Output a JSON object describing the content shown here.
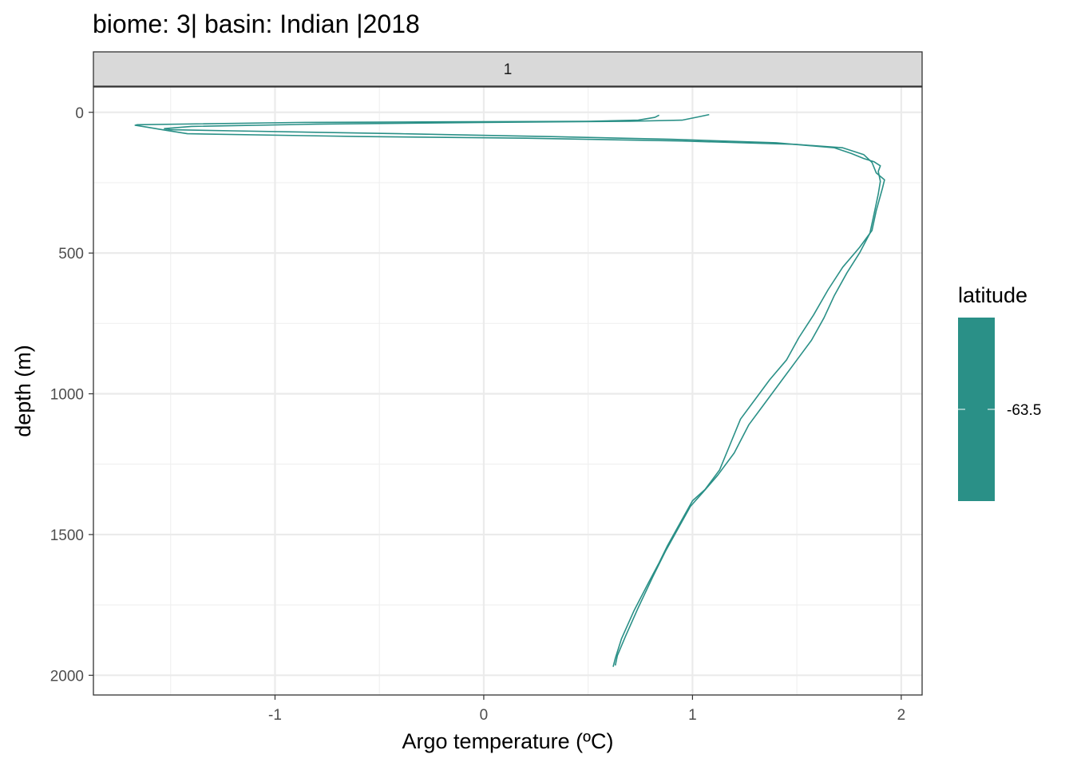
{
  "chart_data": {
    "type": "line",
    "title": "biome: 3| basin: Indian |2018",
    "facet_label": "1",
    "xlabel": "Argo temperature (ºC)",
    "ylabel": "depth (m)",
    "xlim": [
      -1.87,
      2.1
    ],
    "ylim": [
      2070,
      -90
    ],
    "y_reversed": true,
    "grid": true,
    "x_ticks": [
      -1,
      0,
      1,
      2
    ],
    "x_tick_labels": [
      "-1",
      "0",
      "1",
      "2"
    ],
    "y_ticks": [
      0,
      500,
      1000,
      1500,
      2000
    ],
    "y_tick_labels": [
      "0",
      "500",
      "1000",
      "1500",
      "2000"
    ],
    "legend": {
      "title": "latitude",
      "label": "-63.5",
      "placement": "right",
      "color": "#2a9087"
    },
    "series": [
      {
        "color": "#2a9087",
        "points": [
          [
            0.84,
            10
          ],
          [
            0.82,
            18
          ],
          [
            0.74,
            28
          ],
          [
            0.5,
            32
          ],
          [
            -0.2,
            34
          ],
          [
            -0.9,
            36
          ],
          [
            -1.66,
            44
          ],
          [
            -1.67,
            46
          ],
          [
            -1.62,
            52
          ],
          [
            -1.54,
            62
          ],
          [
            -1.42,
            76
          ],
          [
            -0.6,
            86
          ],
          [
            0.2,
            92
          ],
          [
            0.95,
            102
          ],
          [
            1.5,
            114
          ],
          [
            1.72,
            126
          ],
          [
            1.82,
            150
          ],
          [
            1.86,
            178
          ],
          [
            1.88,
            215
          ],
          [
            1.92,
            240
          ],
          [
            1.91,
            270
          ],
          [
            1.88,
            350
          ],
          [
            1.86,
            420
          ],
          [
            1.8,
            480
          ],
          [
            1.72,
            550
          ],
          [
            1.65,
            630
          ],
          [
            1.58,
            720
          ],
          [
            1.51,
            800
          ],
          [
            1.45,
            880
          ],
          [
            1.37,
            950
          ],
          [
            1.3,
            1020
          ],
          [
            1.23,
            1090
          ],
          [
            1.18,
            1180
          ],
          [
            1.13,
            1270
          ],
          [
            1.06,
            1340
          ],
          [
            1.0,
            1380
          ],
          [
            0.94,
            1460
          ],
          [
            0.88,
            1540
          ],
          [
            0.84,
            1600
          ],
          [
            0.79,
            1670
          ],
          [
            0.72,
            1770
          ],
          [
            0.66,
            1870
          ],
          [
            0.63,
            1940
          ],
          [
            0.62,
            1970
          ]
        ]
      },
      {
        "color": "#2a9087",
        "points": [
          [
            1.08,
            8
          ],
          [
            1.03,
            16
          ],
          [
            0.95,
            28
          ],
          [
            0.7,
            32
          ],
          [
            0.0,
            36
          ],
          [
            -0.8,
            42
          ],
          [
            -1.4,
            50
          ],
          [
            -1.53,
            58
          ],
          [
            -1.5,
            62
          ],
          [
            -1.2,
            66
          ],
          [
            -0.4,
            76
          ],
          [
            0.3,
            86
          ],
          [
            0.9,
            96
          ],
          [
            1.4,
            108
          ],
          [
            1.68,
            126
          ],
          [
            1.76,
            146
          ],
          [
            1.82,
            164
          ],
          [
            1.87,
            176
          ],
          [
            1.9,
            190
          ],
          [
            1.89,
            210
          ],
          [
            1.9,
            245
          ],
          [
            1.89,
            290
          ],
          [
            1.87,
            360
          ],
          [
            1.85,
            430
          ],
          [
            1.8,
            500
          ],
          [
            1.74,
            570
          ],
          [
            1.68,
            650
          ],
          [
            1.63,
            730
          ],
          [
            1.57,
            810
          ],
          [
            1.5,
            880
          ],
          [
            1.43,
            950
          ],
          [
            1.34,
            1040
          ],
          [
            1.27,
            1110
          ],
          [
            1.2,
            1210
          ],
          [
            1.12,
            1290
          ],
          [
            1.05,
            1350
          ],
          [
            0.99,
            1400
          ],
          [
            0.93,
            1480
          ],
          [
            0.87,
            1560
          ],
          [
            0.81,
            1650
          ],
          [
            0.74,
            1760
          ],
          [
            0.68,
            1860
          ],
          [
            0.64,
            1930
          ],
          [
            0.63,
            1965
          ]
        ]
      }
    ]
  }
}
